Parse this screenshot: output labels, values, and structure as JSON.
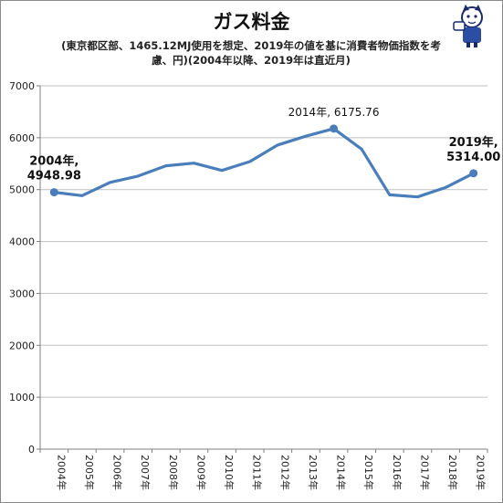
{
  "title": "ガス料金",
  "subtitle": "(東京都区部、1465.12MJ使用を想定、2019年の値を基に消費者物価指数を考慮、円)(2004年以降、2019年は直近月)",
  "colors": {
    "line": "#4a7ebb",
    "grid": "#bfbfbf",
    "axis": "#7f7f7f"
  },
  "chart_data": {
    "type": "line",
    "title": "ガス料金",
    "subtitle": "(東京都区部、1465.12MJ使用を想定、2019年の値を基に消費者物価指数を考慮、円)(2004年以降、2019年は直近月)",
    "categories": [
      "2004年",
      "2005年",
      "2006年",
      "2007年",
      "2008年",
      "2009年",
      "2010年",
      "2011年",
      "2012年",
      "2013年",
      "2014年",
      "2015年",
      "2016年",
      "2017年",
      "2018年",
      "2019年"
    ],
    "values": [
      4948.98,
      4885,
      5140,
      5260,
      5460,
      5510,
      5370,
      5540,
      5860,
      6030,
      6175.76,
      5780,
      4900,
      4860,
      5040,
      5314.0
    ],
    "ylim": [
      0,
      7000
    ],
    "yticks": [
      0,
      1000,
      2000,
      3000,
      4000,
      5000,
      6000,
      7000
    ],
    "grid": true,
    "legend": "none",
    "annotations": [
      {
        "index": 0,
        "lines": [
          "2004年,",
          "4948.98"
        ],
        "style": "bold"
      },
      {
        "index": 10,
        "lines": [
          "2014年, 6175.76"
        ],
        "style": "normal"
      },
      {
        "index": 15,
        "lines": [
          "2019年,",
          "5314.00"
        ],
        "style": "bold"
      }
    ]
  }
}
